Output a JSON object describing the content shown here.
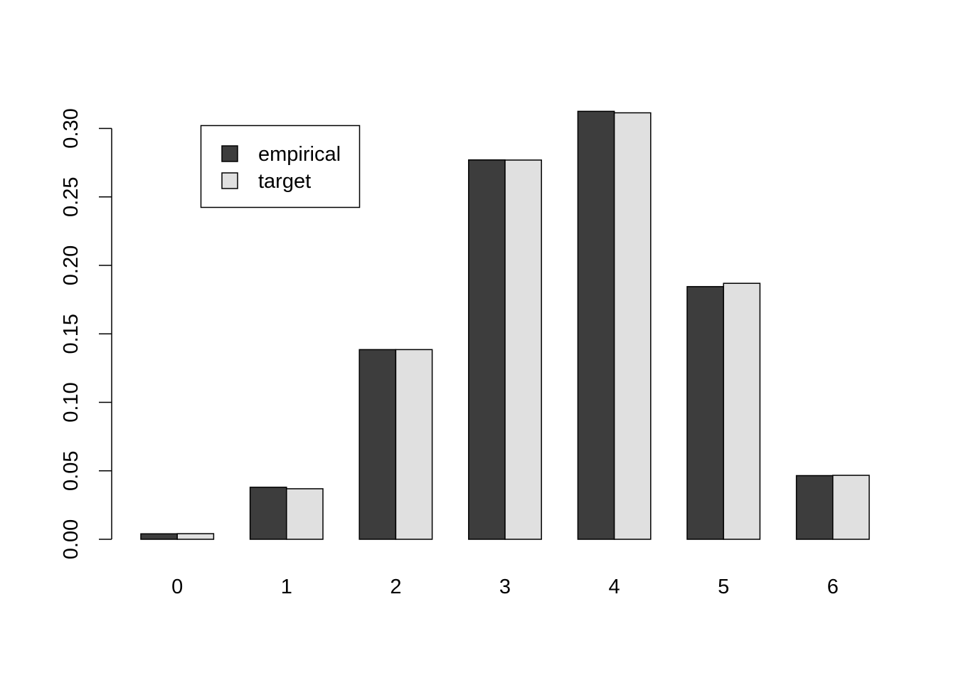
{
  "chart_data": {
    "type": "bar",
    "mode": "grouped",
    "categories": [
      "0",
      "1",
      "2",
      "3",
      "4",
      "5",
      "6"
    ],
    "series": [
      {
        "name": "empirical",
        "color": "#3d3d3d",
        "values": [
          0.004,
          0.038,
          0.1385,
          0.277,
          0.3125,
          0.1845,
          0.0465
        ]
      },
      {
        "name": "target",
        "color": "#e0e0e0",
        "values": [
          0.0041,
          0.0369,
          0.1385,
          0.2769,
          0.3114,
          0.1869,
          0.0467
        ]
      }
    ],
    "y_ticks": [
      {
        "value": 0.0,
        "label": "0.00"
      },
      {
        "value": 0.05,
        "label": "0.05"
      },
      {
        "value": 0.1,
        "label": "0.10"
      },
      {
        "value": 0.15,
        "label": "0.15"
      },
      {
        "value": 0.2,
        "label": "0.20"
      },
      {
        "value": 0.25,
        "label": "0.25"
      },
      {
        "value": 0.3,
        "label": "0.30"
      }
    ],
    "ylim": [
      0,
      0.3
    ],
    "title": "",
    "xlabel": "",
    "ylabel": "",
    "legend_position": "top-left",
    "grid": false
  }
}
